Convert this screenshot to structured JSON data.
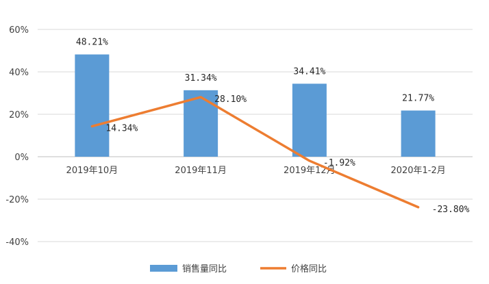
{
  "chart_data": {
    "type": "bar",
    "categories": [
      "2019年10月",
      "2019年11月",
      "2019年12月",
      "2020年1-2月"
    ],
    "series": [
      {
        "name": "销售量同比",
        "type": "bar",
        "color": "#5B9BD5",
        "values": [
          48.21,
          31.34,
          34.41,
          21.77
        ],
        "labels": [
          "48.21%",
          "31.34%",
          "34.41%",
          "21.77%"
        ]
      },
      {
        "name": "价格同比",
        "type": "line",
        "color": "#ED7D31",
        "values": [
          14.34,
          28.1,
          -1.92,
          -23.8
        ],
        "labels": [
          "14.34%",
          "28.10%",
          "-1.92%",
          "-23.80%"
        ]
      }
    ],
    "y_ticks": [
      "60%",
      "40%",
      "20%",
      "0%",
      "-20%",
      "-40%"
    ],
    "ylim": [
      -40,
      60
    ],
    "grid": true,
    "legend": "bottom"
  }
}
